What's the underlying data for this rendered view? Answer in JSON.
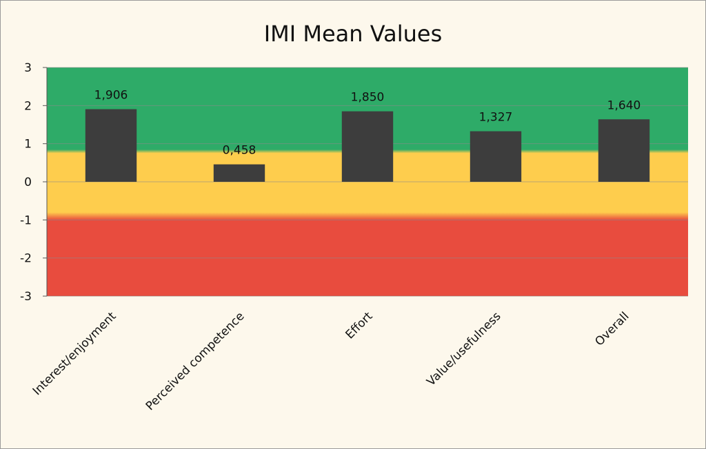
{
  "chart_data": {
    "type": "bar",
    "title": "IMI Mean Values",
    "categories": [
      "Interest/enjoyment",
      "Perceived competence",
      "Effort",
      "Value/usefulness",
      "Overall"
    ],
    "values": [
      1.906,
      0.458,
      1.85,
      1.327,
      1.64
    ],
    "data_labels": [
      "1,906",
      "0,458",
      "1,850",
      "1,327",
      "1,640"
    ],
    "ylim": [
      -3,
      3
    ],
    "yticks": [
      3,
      2,
      1,
      0,
      -1,
      -2,
      -3
    ],
    "grid": true,
    "legend": "none",
    "bar_color": "#3d3d3d",
    "background_bands": [
      {
        "from": 0.85,
        "to": 3,
        "color": "#2eab68"
      },
      {
        "from": -0.8,
        "to": 0.75,
        "color": "#fecd4d"
      },
      {
        "from": -3,
        "to": -1,
        "color": "#e84c3e"
      }
    ]
  }
}
